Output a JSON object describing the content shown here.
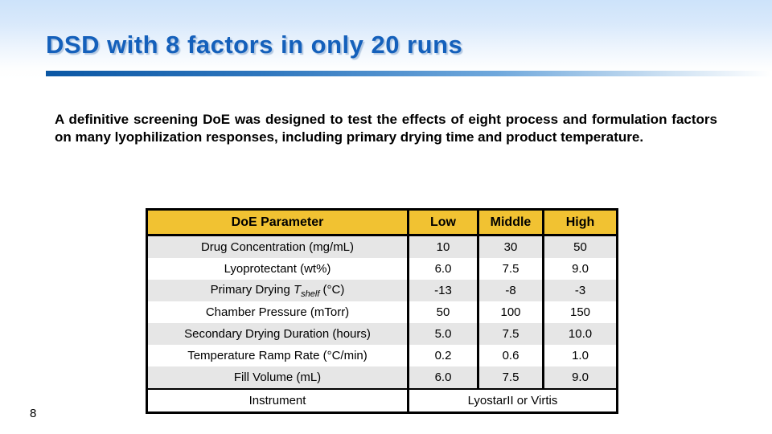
{
  "slide": {
    "title": "DSD with 8 factors in only 20 runs",
    "body_paragraph": "A definitive screening DoE was designed to test the effects of eight process and formulation factors on many lyophilization responses, including primary drying time and product temperature.",
    "page_number": "8"
  },
  "table": {
    "headers": [
      "DoE Parameter",
      "Low",
      "Middle",
      "High"
    ],
    "rows": [
      {
        "label": "Drug Concentration (mg/mL)",
        "values": [
          "10",
          "30",
          "50"
        ],
        "shaded": true
      },
      {
        "label": "Lyoprotectant (wt%)",
        "values": [
          "6.0",
          "7.5",
          "9.0"
        ],
        "shaded": false
      },
      {
        "label_parts": {
          "pre": "Primary Drying ",
          "var": "T",
          "sub": "shelf",
          "post": " (°C)"
        },
        "values": [
          "-13",
          "-8",
          "-3"
        ],
        "shaded": true
      },
      {
        "label": "Chamber Pressure (mTorr)",
        "values": [
          "50",
          "100",
          "150"
        ],
        "shaded": false
      },
      {
        "label": "Secondary Drying Duration (hours)",
        "values": [
          "5.0",
          "7.5",
          "10.0"
        ],
        "shaded": true
      },
      {
        "label": "Temperature Ramp Rate (°C/min)",
        "values": [
          "0.2",
          "0.6",
          "1.0"
        ],
        "shaded": false
      },
      {
        "label": "Fill Volume (mL)",
        "values": [
          "6.0",
          "7.5",
          "9.0"
        ],
        "shaded": true
      },
      {
        "label": "Instrument",
        "span_value": "LyostarII or Virtis",
        "shaded": false
      }
    ]
  },
  "colors": {
    "title_blue": "#1460bb",
    "rule_gradient_start": "#0b57a4",
    "rule_gradient_end": "#ffffff",
    "header_yellow": "#f1c232",
    "row_shaded_gray": "#e6e6e6",
    "table_border": "#000000",
    "header_band_top": "#cde3fa"
  }
}
